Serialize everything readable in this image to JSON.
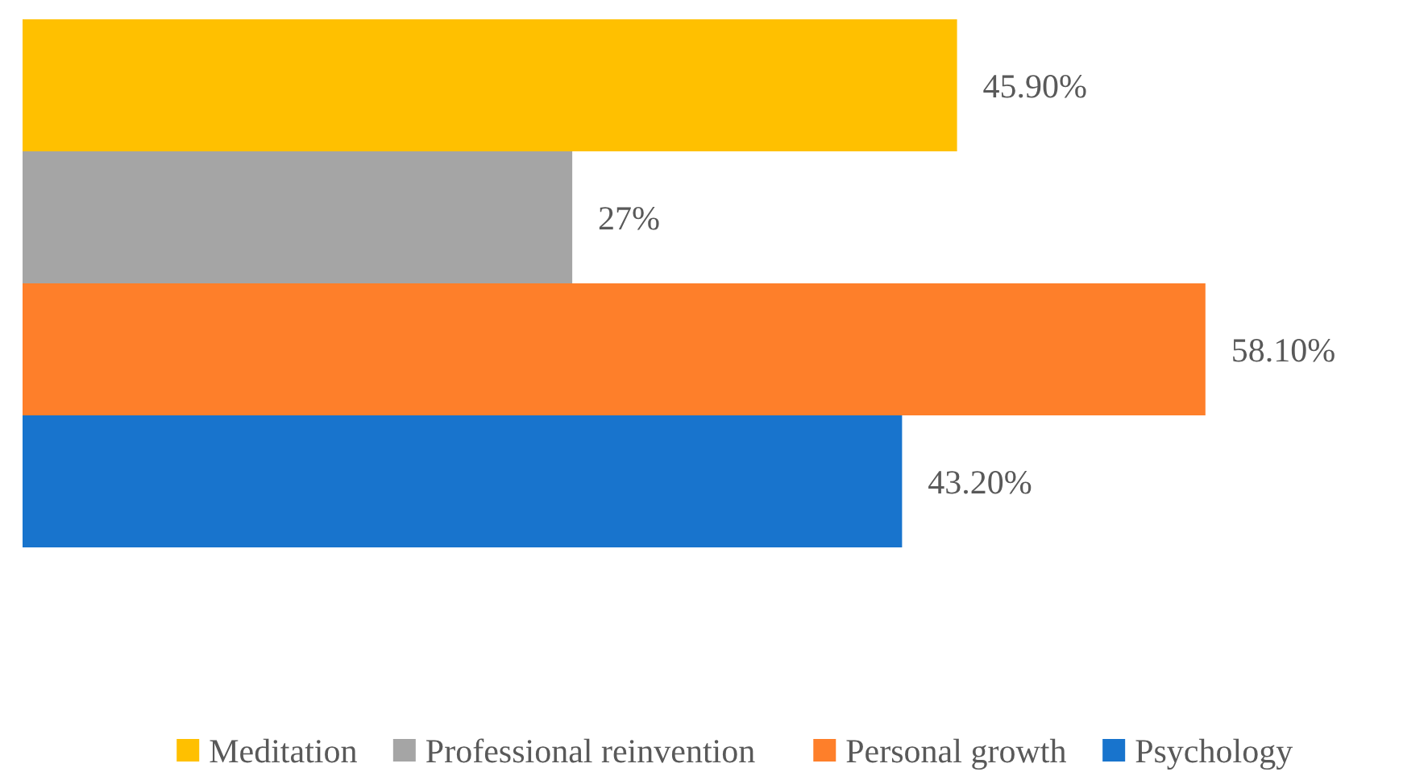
{
  "chart_data": {
    "type": "bar",
    "orientation": "horizontal",
    "categories": [
      null
    ],
    "legend": "bottom",
    "series": [
      {
        "name": "Meditation",
        "color": "#ffc000",
        "values": [
          45.9
        ],
        "value_labels": [
          "45.90%"
        ]
      },
      {
        "name": "Professional reinvention",
        "color": "#a5a5a5",
        "values": [
          27
        ],
        "value_labels": [
          "27%"
        ]
      },
      {
        "name": "Personal growth",
        "color": "#fe7f2a",
        "values": [
          58.1
        ],
        "value_labels": [
          "58.10%"
        ]
      },
      {
        "name": "Psychology",
        "color": "#1874cd",
        "values": [
          43.2
        ],
        "value_labels": [
          "43.20%"
        ]
      }
    ]
  }
}
